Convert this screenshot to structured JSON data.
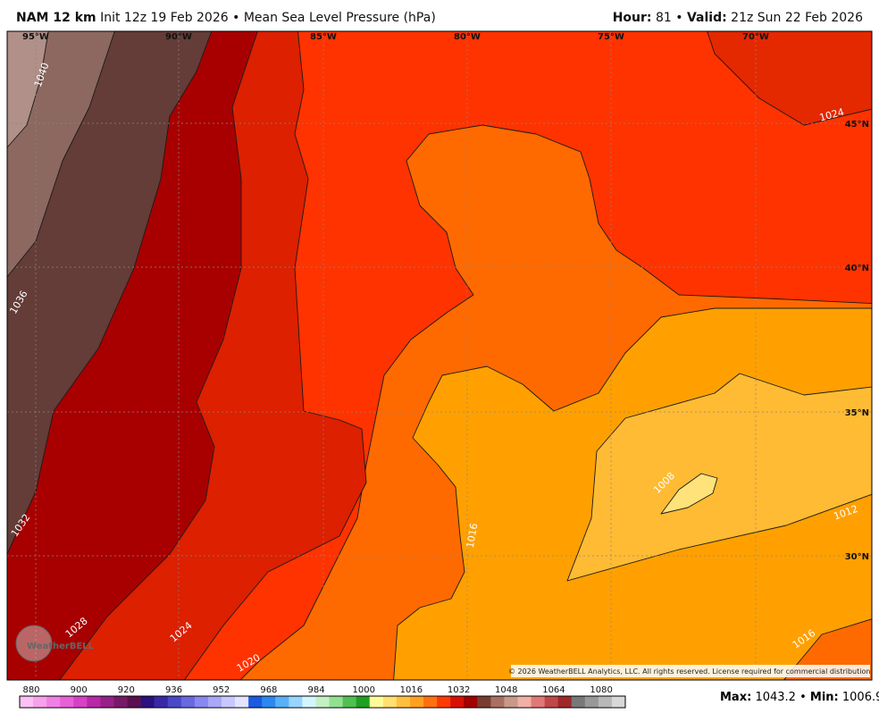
{
  "header": {
    "model": "NAM 12 km",
    "init": "Init 12z 19 Feb 2026",
    "separator": "•",
    "field": "Mean Sea Level Pressure (hPa)",
    "hour_label": "Hour:",
    "hour": "81",
    "valid_label": "Valid:",
    "valid": "21z Sun 22 Feb 2026"
  },
  "longitude_labels": [
    "95°W",
    "90°W",
    "85°W",
    "80°W",
    "75°W",
    "70°W"
  ],
  "latitude_labels": [
    "45°N",
    "40°N",
    "35°N",
    "30°N"
  ],
  "contour_labels": [
    "1040",
    "1036",
    "1032",
    "1028",
    "1024",
    "1020",
    "1016",
    "1012",
    "1008",
    "1024",
    "1016"
  ],
  "copyright": "© 2026 WeatherBELL Analytics, LLC. All rights reserved. License required for commercial distribution.",
  "logo": "WeatherBELL",
  "colorbar": {
    "ticks": [
      880,
      900,
      920,
      936,
      952,
      968,
      984,
      1000,
      1016,
      1032,
      1048,
      1064,
      1080
    ],
    "colors": [
      "#fbc0f4",
      "#f7a0ec",
      "#f080e4",
      "#e860d8",
      "#d840c8",
      "#b828a8",
      "#982088",
      "#781868",
      "#5a1050",
      "#2a1080",
      "#3828a8",
      "#4a48c8",
      "#6868e0",
      "#8888f0",
      "#a8a8f8",
      "#c8c8ff",
      "#e4e4ff",
      "#1c5ae0",
      "#2c88f0",
      "#58b0f8",
      "#98d4ff",
      "#d4f4ff",
      "#c4f0c4",
      "#90e090",
      "#50c050",
      "#20a020",
      "#fffc98",
      "#ffe070",
      "#ffc040",
      "#ffa020",
      "#ff7010",
      "#ff3a00",
      "#d81000",
      "#a00000",
      "#7a3c30",
      "#a87060",
      "#c89888",
      "#f0b0a8",
      "#e07878",
      "#c04848",
      "#a02828",
      "#787878",
      "#989898",
      "#b8b8b8",
      "#d8d8d8"
    ]
  },
  "stats": {
    "max_label": "Max:",
    "max": 1043.2,
    "separator": "•",
    "min_label": "Min:",
    "min": 1006.9
  }
}
